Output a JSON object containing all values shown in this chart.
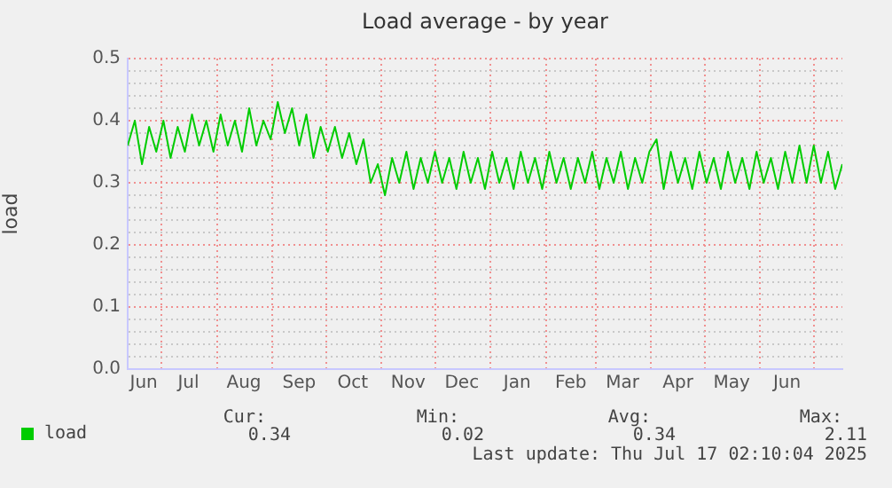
{
  "chart_data": {
    "type": "line",
    "title": "Load average - by year",
    "ylabel": "load",
    "xlim": [
      "2024-06-12",
      "2025-07-17"
    ],
    "xticks": [
      {
        "value": "2024-06-21",
        "label": "Jun"
      },
      {
        "value": "2024-07-01",
        "label": null
      },
      {
        "value": "2024-07-16",
        "label": "Jul"
      },
      {
        "value": "2024-08-01",
        "label": null
      },
      {
        "value": "2024-08-16",
        "label": "Aug"
      },
      {
        "value": "2024-09-01",
        "label": null
      },
      {
        "value": "2024-09-16",
        "label": "Sep"
      },
      {
        "value": "2024-10-01",
        "label": null
      },
      {
        "value": "2024-10-16",
        "label": "Oct"
      },
      {
        "value": "2024-11-01",
        "label": null
      },
      {
        "value": "2024-11-16",
        "label": "Nov"
      },
      {
        "value": "2024-12-01",
        "label": null
      },
      {
        "value": "2024-12-16",
        "label": "Dec"
      },
      {
        "value": "2025-01-01",
        "label": null
      },
      {
        "value": "2025-01-16",
        "label": "Jan"
      },
      {
        "value": "2025-02-01",
        "label": null
      },
      {
        "value": "2025-02-15",
        "label": "Feb"
      },
      {
        "value": "2025-03-01",
        "label": null
      },
      {
        "value": "2025-03-16",
        "label": "Mar"
      },
      {
        "value": "2025-04-01",
        "label": null
      },
      {
        "value": "2025-04-16",
        "label": "Apr"
      },
      {
        "value": "2025-05-01",
        "label": null
      },
      {
        "value": "2025-05-16",
        "label": "May"
      },
      {
        "value": "2025-06-01",
        "label": null
      },
      {
        "value": "2025-06-16",
        "label": "Jun"
      },
      {
        "value": "2025-07-01",
        "label": null
      }
    ],
    "ylim": [
      0,
      0.5
    ],
    "yticks": [
      "0.0",
      {
        "value": 0.02,
        "label": null
      },
      {
        "value": 0.04,
        "label": null
      },
      {
        "value": 0.06,
        "label": null
      },
      {
        "value": 0.08,
        "label": null
      },
      {
        "value": 0.1,
        "label": "0.1"
      },
      {
        "value": 0.12,
        "label": null
      },
      {
        "value": 0.14,
        "label": null
      },
      {
        "value": 0.16,
        "label": null
      },
      {
        "value": 0.18,
        "label": null
      },
      {
        "value": 0.2,
        "label": "0.2"
      },
      {
        "value": 0.22,
        "label": null
      },
      {
        "value": 0.24,
        "label": null
      },
      {
        "value": 0.26,
        "label": null
      },
      {
        "value": 0.28,
        "label": null
      },
      {
        "value": 0.3,
        "label": "0.3"
      },
      {
        "value": 0.32,
        "label": null
      },
      {
        "value": 0.34,
        "label": null
      },
      {
        "value": 0.36,
        "label": null
      },
      {
        "value": 0.38,
        "label": null
      },
      {
        "value": 0.4,
        "label": "0.4"
      },
      {
        "value": 0.42,
        "label": null
      },
      {
        "value": 0.44,
        "label": null
      },
      {
        "value": 0.46,
        "label": null
      },
      {
        "value": 0.48,
        "label": null
      },
      {
        "value": 0.5,
        "label": "0.5"
      }
    ],
    "grid": true,
    "legend": "bottom left",
    "marker": "none",
    "line_style": "solid",
    "x": [
      "2024-06-12",
      "2024-06-16",
      "2024-06-20",
      "2024-06-24",
      "2024-06-28",
      "2024-07-02",
      "2024-07-06",
      "2024-07-10",
      "2024-07-14",
      "2024-07-18",
      "2024-07-22",
      "2024-07-26",
      "2024-07-30",
      "2024-08-03",
      "2024-08-07",
      "2024-08-11",
      "2024-08-15",
      "2024-08-19",
      "2024-08-23",
      "2024-08-27",
      "2024-08-31",
      "2024-09-04",
      "2024-09-08",
      "2024-09-12",
      "2024-09-16",
      "2024-09-20",
      "2024-09-24",
      "2024-09-28",
      "2024-10-02",
      "2024-10-06",
      "2024-10-10",
      "2024-10-14",
      "2024-10-18",
      "2024-10-22",
      "2024-10-26",
      "2024-10-30",
      "2024-11-03",
      "2024-11-07",
      "2024-11-11",
      "2024-11-15",
      "2024-11-19",
      "2024-11-23",
      "2024-11-27",
      "2024-12-01",
      "2024-12-05",
      "2024-12-09",
      "2024-12-13",
      "2024-12-17",
      "2024-12-21",
      "2024-12-25",
      "2024-12-29",
      "2025-01-02",
      "2025-01-06",
      "2025-01-10",
      "2025-01-14",
      "2025-01-18",
      "2025-01-22",
      "2025-01-26",
      "2025-01-30",
      "2025-02-03",
      "2025-02-07",
      "2025-02-11",
      "2025-02-15",
      "2025-02-19",
      "2025-02-23",
      "2025-02-27",
      "2025-03-03",
      "2025-03-07",
      "2025-03-11",
      "2025-03-15",
      "2025-03-19",
      "2025-03-23",
      "2025-03-27",
      "2025-03-31",
      "2025-04-04",
      "2025-04-08",
      "2025-04-12",
      "2025-04-16",
      "2025-04-20",
      "2025-04-24",
      "2025-04-28",
      "2025-05-02",
      "2025-05-06",
      "2025-05-10",
      "2025-05-14",
      "2025-05-18",
      "2025-05-22",
      "2025-05-26",
      "2025-05-30",
      "2025-06-03",
      "2025-06-07",
      "2025-06-11",
      "2025-06-15",
      "2025-06-19",
      "2025-06-23",
      "2025-06-27",
      "2025-07-01",
      "2025-07-05",
      "2025-07-09",
      "2025-07-13",
      "2025-07-17"
    ],
    "series": [
      {
        "name": "load",
        "color": "#00cc00",
        "values": [
          0.36,
          0.4,
          0.33,
          0.39,
          0.35,
          0.4,
          0.34,
          0.39,
          0.35,
          0.41,
          0.36,
          0.4,
          0.35,
          0.41,
          0.36,
          0.4,
          0.35,
          0.42,
          0.36,
          0.4,
          0.37,
          0.43,
          0.38,
          0.42,
          0.36,
          0.41,
          0.34,
          0.39,
          0.35,
          0.39,
          0.34,
          0.38,
          0.33,
          0.37,
          0.3,
          0.33,
          0.28,
          0.34,
          0.3,
          0.35,
          0.29,
          0.34,
          0.3,
          0.35,
          0.3,
          0.34,
          0.29,
          0.35,
          0.3,
          0.34,
          0.29,
          0.35,
          0.3,
          0.34,
          0.29,
          0.35,
          0.3,
          0.34,
          0.29,
          0.35,
          0.3,
          0.34,
          0.29,
          0.34,
          0.3,
          0.35,
          0.29,
          0.34,
          0.3,
          0.35,
          0.29,
          0.34,
          0.3,
          0.35,
          0.37,
          0.29,
          0.35,
          0.3,
          0.34,
          0.29,
          0.35,
          0.3,
          0.34,
          0.29,
          0.35,
          0.3,
          0.34,
          0.29,
          0.35,
          0.3,
          0.34,
          0.29,
          0.35,
          0.3,
          0.36,
          0.3,
          0.36,
          0.3,
          0.35,
          0.29,
          0.33
        ]
      }
    ],
    "annotations": [
      "Cur:",
      "0.34",
      "Min:",
      "0.02",
      "Avg:",
      "0.34",
      "Max:",
      "2.11",
      "Last update: Thu Jul 17 02:10:04 2025"
    ]
  }
}
